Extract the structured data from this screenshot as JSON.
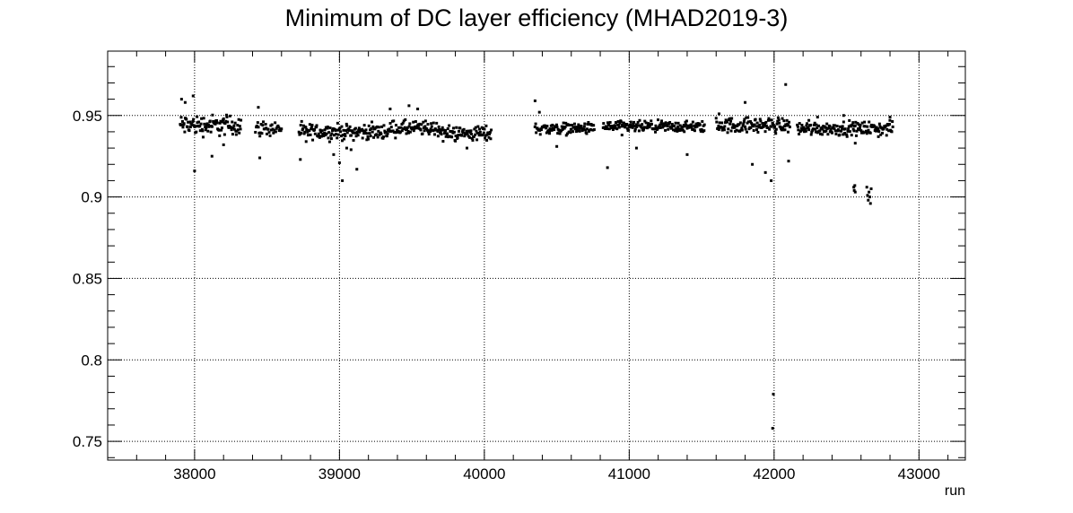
{
  "chart_data": {
    "type": "scatter",
    "title": "Minimum of DC layer efficiency (MHAD2019-3)",
    "xlabel": "run",
    "ylabel": "",
    "xlim": [
      37400,
      43320
    ],
    "ylim": [
      0.7385,
      0.9895
    ],
    "x_ticks": [
      38000,
      39000,
      40000,
      41000,
      42000,
      43000
    ],
    "x_tick_labels": [
      "38000",
      "39000",
      "40000",
      "41000",
      "42000",
      "43000"
    ],
    "y_ticks": [
      0.75,
      0.8,
      0.85,
      0.9,
      0.95
    ],
    "y_tick_labels": [
      "0.75",
      "0.8",
      "0.85",
      "0.9",
      "0.95"
    ],
    "grid": true,
    "marker": "square",
    "color": "#000000",
    "series": [
      {
        "segments": [
          {
            "from": 37900,
            "to": 38320,
            "step": 4,
            "center": 0.944,
            "spread": 0.0055
          },
          {
            "from": 38420,
            "to": 38600,
            "step": 5,
            "center": 0.942,
            "spread": 0.004
          },
          {
            "from": 38720,
            "to": 39350,
            "step": 4,
            "center": 0.94,
            "spread": 0.004
          },
          {
            "from": 39350,
            "to": 39700,
            "step": 4,
            "center": 0.942,
            "spread": 0.004
          },
          {
            "from": 39700,
            "to": 40050,
            "step": 4,
            "center": 0.939,
            "spread": 0.004
          },
          {
            "from": 40350,
            "to": 40760,
            "step": 4,
            "center": 0.942,
            "spread": 0.003
          },
          {
            "from": 40820,
            "to": 41520,
            "step": 4,
            "center": 0.943,
            "spread": 0.003
          },
          {
            "from": 41600,
            "to": 42110,
            "step": 4,
            "center": 0.944,
            "spread": 0.004
          },
          {
            "from": 42160,
            "to": 42820,
            "step": 4,
            "center": 0.942,
            "spread": 0.0035
          }
        ],
        "points": [
          [
            37910,
            0.96
          ],
          [
            37935,
            0.958
          ],
          [
            37990,
            0.962
          ],
          [
            38000,
            0.916
          ],
          [
            38120,
            0.925
          ],
          [
            38200,
            0.932
          ],
          [
            38440,
            0.955
          ],
          [
            38450,
            0.924
          ],
          [
            38730,
            0.923
          ],
          [
            38770,
            0.934
          ],
          [
            38960,
            0.926
          ],
          [
            39000,
            0.921
          ],
          [
            39020,
            0.91
          ],
          [
            39050,
            0.93
          ],
          [
            39080,
            0.929
          ],
          [
            39120,
            0.917
          ],
          [
            39350,
            0.954
          ],
          [
            39480,
            0.956
          ],
          [
            39540,
            0.954
          ],
          [
            39880,
            0.93
          ],
          [
            40350,
            0.959
          ],
          [
            40380,
            0.952
          ],
          [
            40450,
            0.939
          ],
          [
            40500,
            0.931
          ],
          [
            40850,
            0.918
          ],
          [
            40950,
            0.938
          ],
          [
            41050,
            0.93
          ],
          [
            41400,
            0.926
          ],
          [
            41620,
            0.951
          ],
          [
            41800,
            0.958
          ],
          [
            41850,
            0.92
          ],
          [
            41940,
            0.915
          ],
          [
            41980,
            0.91
          ],
          [
            41995,
            0.779
          ],
          [
            41990,
            0.758
          ],
          [
            42080,
            0.969
          ],
          [
            42100,
            0.922
          ],
          [
            42240,
            0.947
          ],
          [
            42300,
            0.949
          ],
          [
            42480,
            0.95
          ],
          [
            42540,
            0.944
          ],
          [
            42550,
            0.906
          ],
          [
            42553,
            0.904
          ],
          [
            42557,
            0.907
          ],
          [
            42560,
            0.903
          ],
          [
            42560,
            0.933
          ],
          [
            42640,
            0.906
          ],
          [
            42645,
            0.901
          ],
          [
            42650,
            0.898
          ],
          [
            42655,
            0.903
          ],
          [
            42660,
            0.9
          ],
          [
            42665,
            0.896
          ],
          [
            42670,
            0.905
          ],
          [
            42720,
            0.937
          ],
          [
            42800,
            0.949
          ]
        ]
      }
    ]
  }
}
